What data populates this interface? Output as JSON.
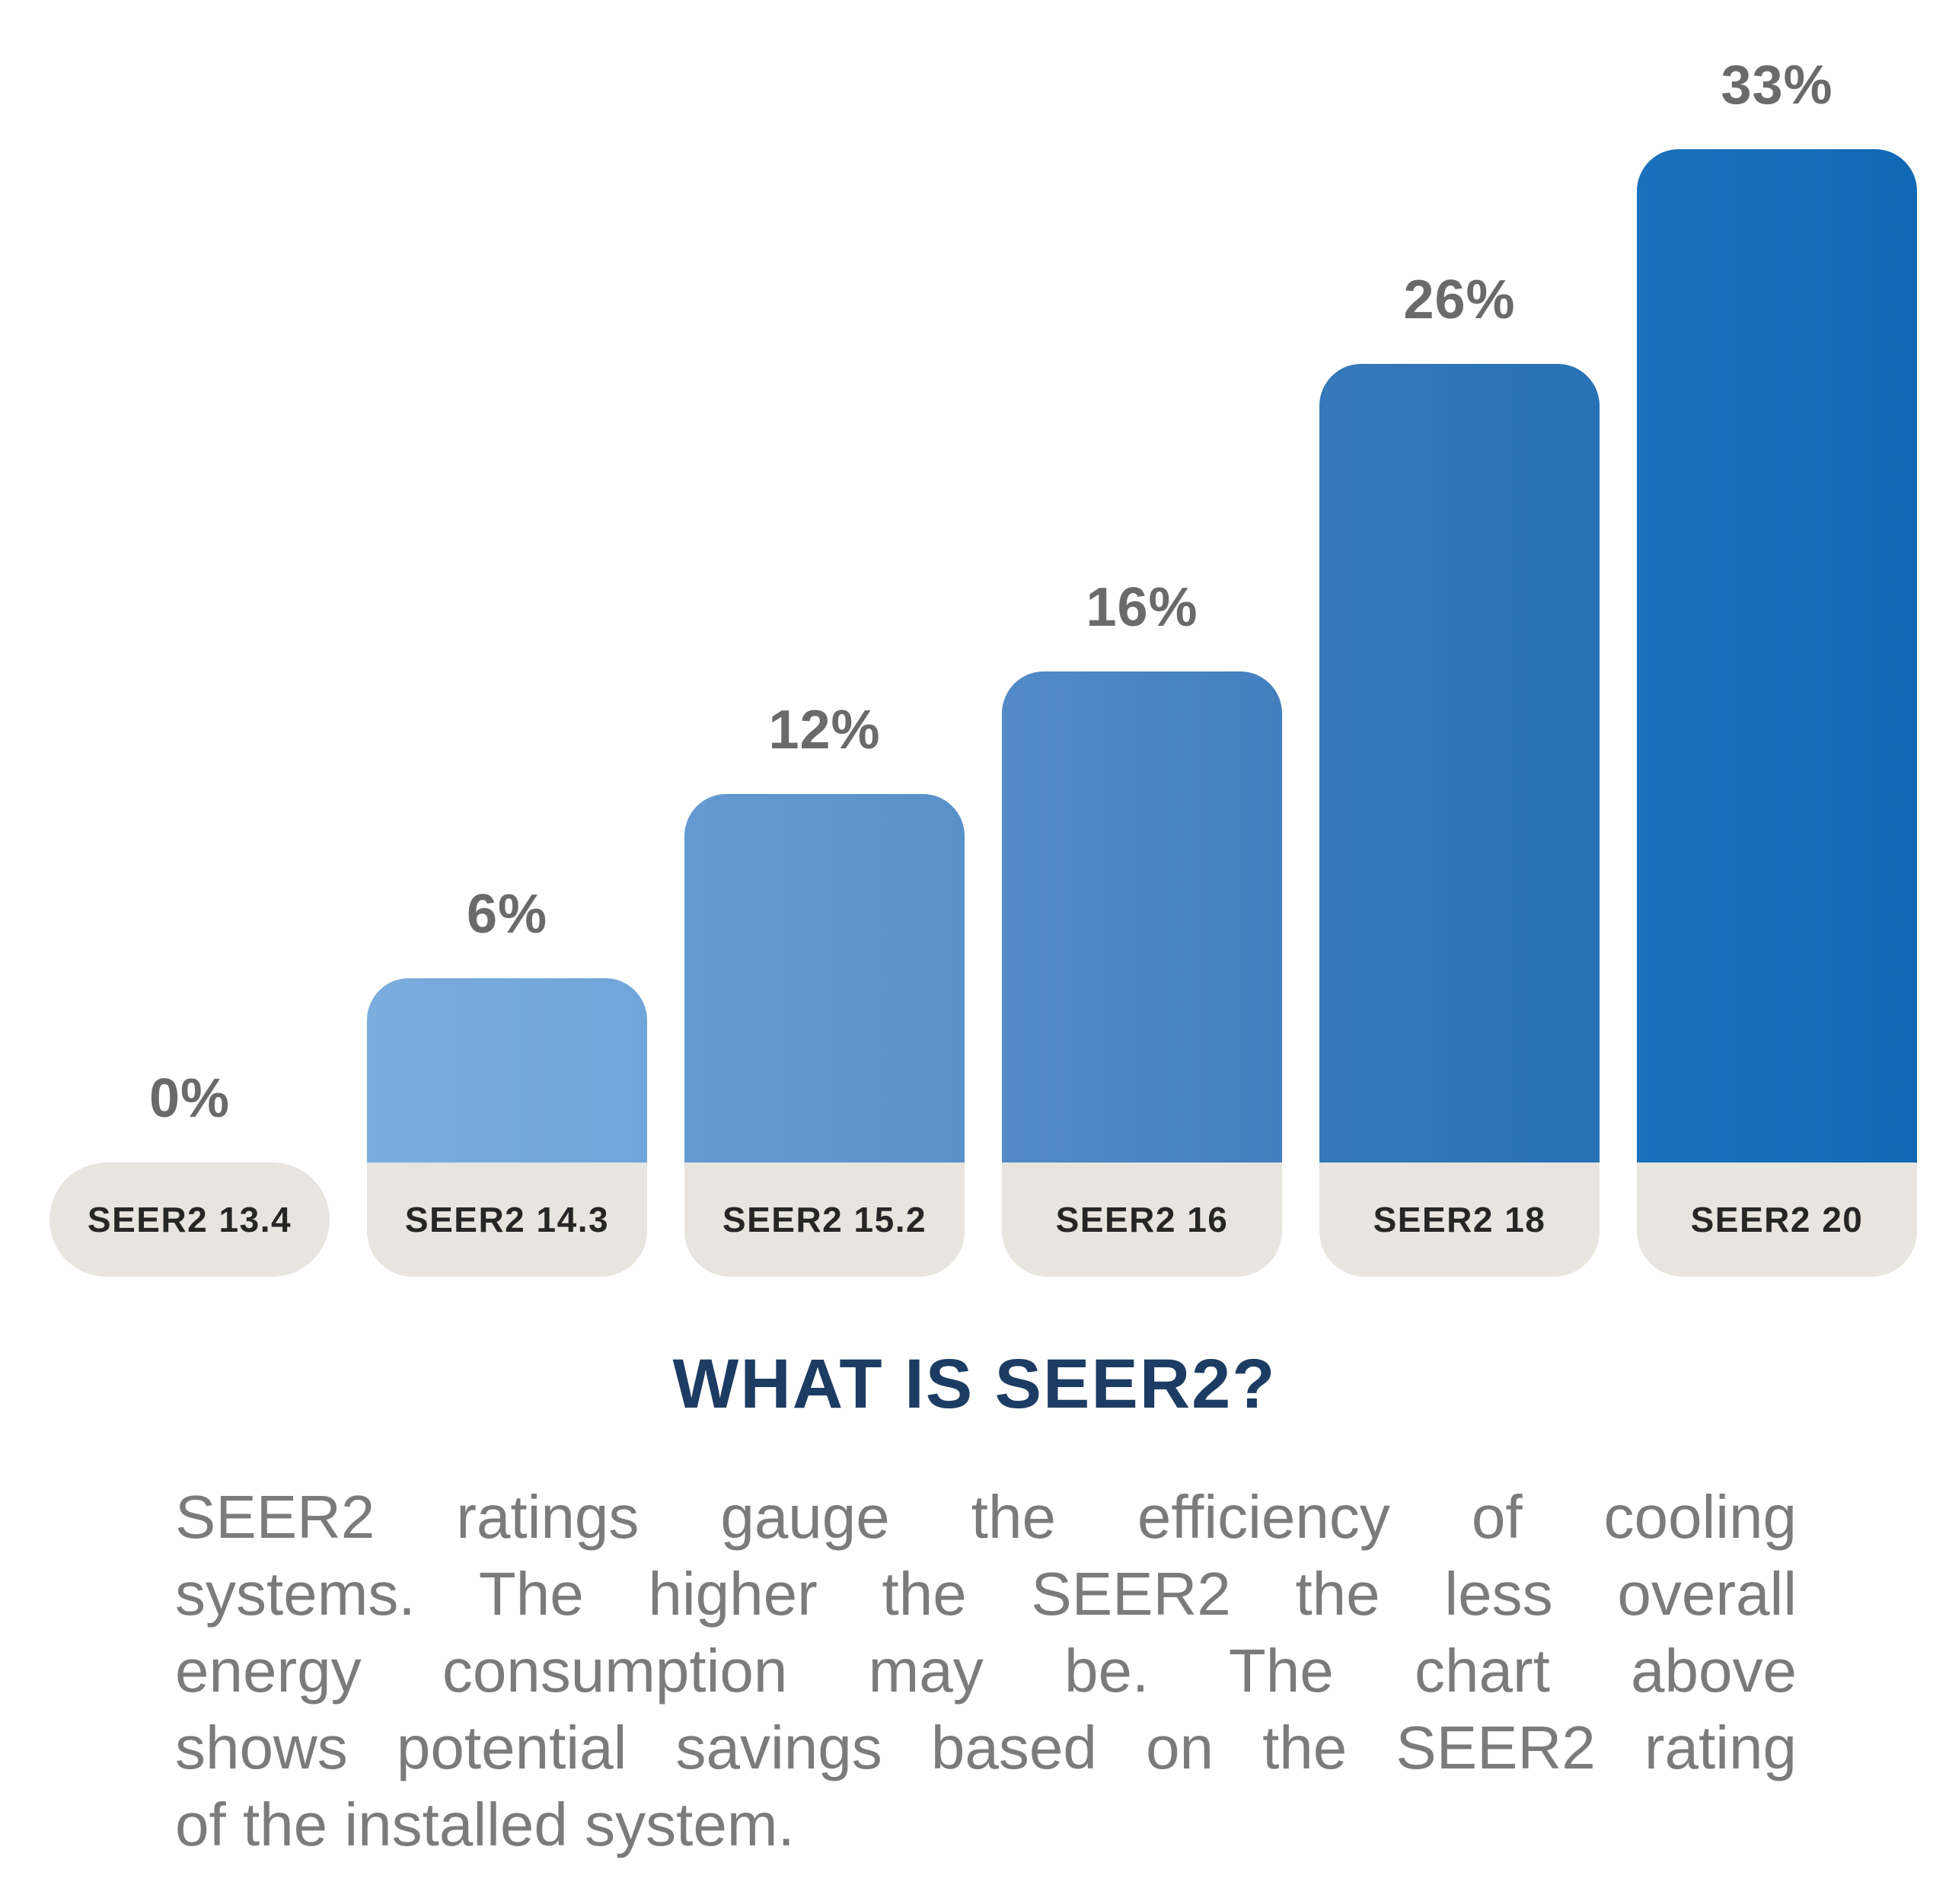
{
  "chart_data": {
    "type": "bar",
    "categories": [
      "SEER2 13.4",
      "SEER2 14.3",
      "SEER2 15.2",
      "SEER2 16",
      "SEER2 18",
      "SEER2 20"
    ],
    "values": [
      0,
      6,
      12,
      16,
      26,
      33
    ],
    "value_labels": [
      "0%",
      "6%",
      "12%",
      "16%",
      "26%",
      "33%"
    ],
    "title": "",
    "xlabel": "",
    "ylabel": "",
    "ylim": [
      0,
      33
    ],
    "grid": false,
    "legend": false,
    "bar_gradients": [
      [
        "#e8e5e0",
        "#e8e5e0"
      ],
      [
        "#7badde",
        "#6fa5d9"
      ],
      [
        "#649ad1",
        "#5891c9"
      ],
      [
        "#528bc7",
        "#437fbe"
      ],
      [
        "#3579ba",
        "#2771b5"
      ],
      [
        "#1a71bc",
        "#1168b4"
      ]
    ],
    "category_pill_color": "#e8e5e0",
    "value_label_color": "#6a6a6a",
    "category_label_color": "#262626"
  },
  "heading": {
    "title": "WHAT IS SEER2?"
  },
  "body": {
    "lines": [
      "SEER2 ratings gauge the efficiency of cooling",
      "systems. The higher the SEER2 the less overall",
      "energy consumption may be. The chart above",
      "shows potential savings based on the SEER2 rating",
      "of the installed system."
    ]
  },
  "colors": {
    "title": "#1c3c63",
    "body_text": "#7b7b7b",
    "background": "#ffffff"
  }
}
